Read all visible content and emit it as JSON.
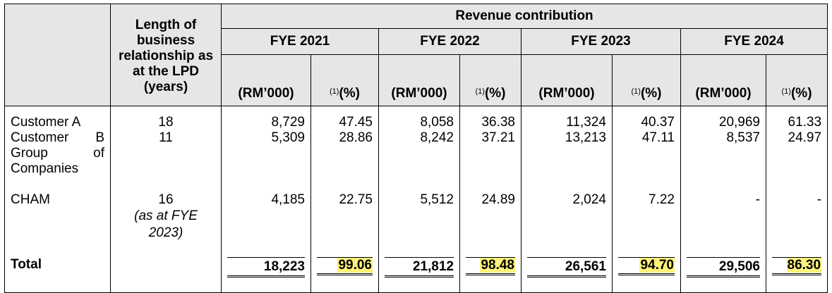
{
  "header": {
    "length_label": "Length of business relationship as at the LPD (years)",
    "revenue_label": "Revenue contribution",
    "years": [
      "FYE 2021",
      "FYE 2022",
      "FYE 2023",
      "FYE 2024"
    ],
    "rm_label": "(RM’000)",
    "pct_sup": "(1)",
    "pct_label": "(%)"
  },
  "rows": [
    {
      "name": "Customer A",
      "length": "18",
      "length_note": "",
      "values": [
        "8,729",
        "47.45",
        "8,058",
        "36.38",
        "11,324",
        "40.37",
        "20,969",
        "61.33"
      ]
    },
    {
      "name": "Customer B Group of Companies",
      "length": "11",
      "length_note": "",
      "values": [
        "5,309",
        "28.86",
        "8,242",
        "37.21",
        "13,213",
        "47.11",
        "8,537",
        "24.97"
      ]
    },
    {
      "name": "CHAM",
      "length": "16",
      "length_note": "(as at FYE 2023)",
      "values": [
        "4,185",
        "22.75",
        "5,512",
        "24.89",
        "2,024",
        "7.22",
        "-",
        "-"
      ]
    }
  ],
  "total": {
    "label": "Total",
    "values": [
      "18,223",
      "99.06",
      "21,812",
      "98.48",
      "26,561",
      "94.70",
      "29,506",
      "86.30"
    ]
  },
  "colors": {
    "header_bg": "#e6e6e6",
    "highlight": "#fff27a"
  }
}
